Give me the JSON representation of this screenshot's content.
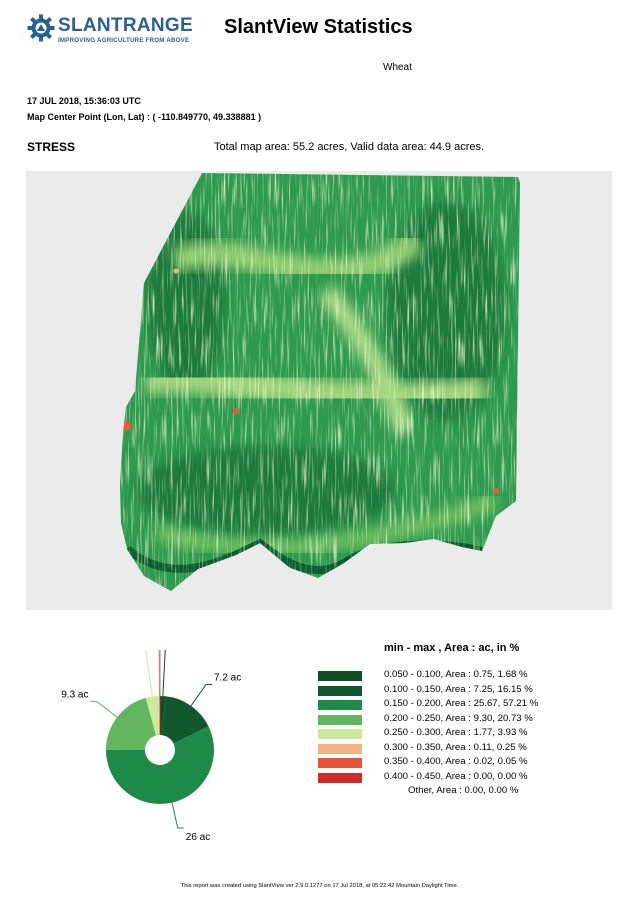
{
  "header": {
    "logo_name": "SLANTRANGE",
    "logo_tagline": "IMPROVING AGRICULTURE FROM ABOVE",
    "logo_icon": "gear-logo-icon",
    "title": "SlantView Statistics",
    "crop": "Wheat"
  },
  "meta": {
    "date": "17 JUL 2018, 15:36:03 UTC",
    "center_point": "Map Center Point (Lon, Lat) : ( -110.849770, 49.338881 )"
  },
  "section": {
    "metric": "STRESS",
    "area_summary": "Total map area: 55.2 acres, Valid data area: 44.9 acres."
  },
  "map": {
    "background": "#ebebeb",
    "palette": [
      "#0a5c30",
      "#1a7a3e",
      "#2d9a4e",
      "#6dbe5d",
      "#cfe89a",
      "#f3b682",
      "#e45b3e",
      "#d0302a"
    ]
  },
  "chart_data": {
    "type": "pie",
    "title": "",
    "slice_labels": [
      "7.2 ac",
      "26 ac",
      "9.3 ac"
    ],
    "slices": [
      {
        "range": "0.050 - 0.100",
        "acres": 0.75,
        "color": "#0f4d24"
      },
      {
        "range": "0.100 - 0.150",
        "acres": 7.25,
        "color": "#11572e"
      },
      {
        "range": "0.150 - 0.200",
        "acres": 25.67,
        "color": "#1e8a47"
      },
      {
        "range": "0.200 - 0.250",
        "acres": 9.3,
        "color": "#62b65e"
      },
      {
        "range": "0.250 - 0.300",
        "acres": 1.77,
        "color": "#cde99d"
      },
      {
        "range": "0.300 - 0.350",
        "acres": 0.11,
        "color": "#f3b184"
      },
      {
        "range": "0.350 - 0.400",
        "acres": 0.02,
        "color": "#e8533c"
      },
      {
        "range": "0.400 - 0.450",
        "acres": 0.0,
        "color": "#d02b2b"
      }
    ]
  },
  "legend": {
    "title": "min - max ,  Area : ac, in %",
    "rows": [
      {
        "color": "#0f4d24",
        "text": "0.050 - 0.100,   Area : 0.75,    1.68 %"
      },
      {
        "color": "#11572e",
        "text": "0.100 - 0.150,   Area : 7.25,    16.15 %"
      },
      {
        "color": "#1e8a47",
        "text": "0.150 - 0.200,   Area : 25.67,    57.21 %"
      },
      {
        "color": "#62b65e",
        "text": "0.200 - 0.250,   Area : 9.30,    20.73 %"
      },
      {
        "color": "#cde99d",
        "text": "0.250 - 0.300,   Area : 1.77,    3.93 %"
      },
      {
        "color": "#f3b184",
        "text": "0.300 - 0.350,   Area : 0.11,    0.25 %"
      },
      {
        "color": "#e8533c",
        "text": "0.350 - 0.400,   Area : 0.02,    0.05 %"
      },
      {
        "color": "#d02b2b",
        "text": "0.400 - 0.450,   Area : 0.00,    0.00 %"
      }
    ],
    "other": "Other,    Area : 0.00,    0.00 %"
  },
  "footer": "This report was created using SlantView ver 2.9.0.1277 on 17 Jul 2018, at 05:22:42 Mountain Daylight Time."
}
